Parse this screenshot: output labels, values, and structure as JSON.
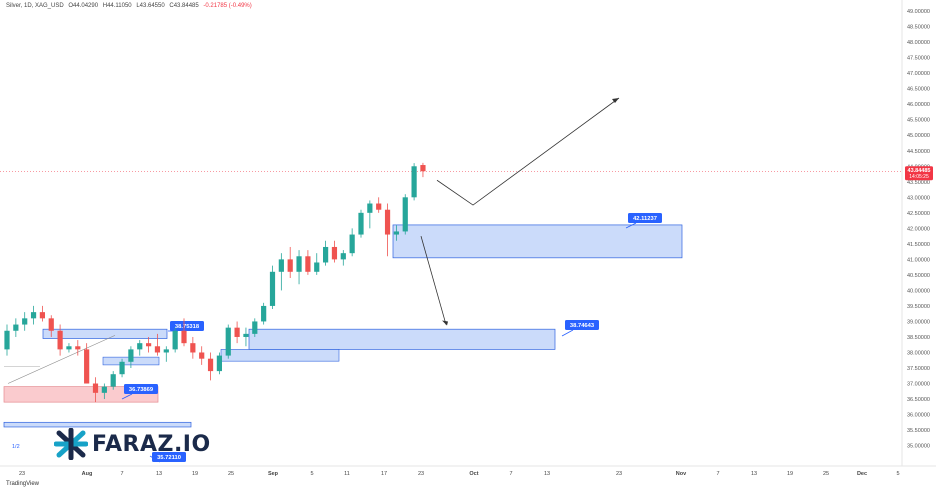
{
  "header": {
    "symbol": "Silver, 1D, XAG_USD",
    "open": "O44.04290",
    "high": "H44.11050",
    "low": "L43.64550",
    "close": "C43.84485",
    "change": "-0.21785 (-0.49%)"
  },
  "logo_text": "FARAZ.IO",
  "tv_brand": "TradingView",
  "left_marker": "1/2",
  "colors": {
    "up": "#26a69a",
    "down": "#ef5350",
    "zone_fill": "rgba(160,190,245,0.55)",
    "zone_stroke": "#2f63e0",
    "red_zone": "rgba(245,160,165,0.55)",
    "label_bg": "#2962ff",
    "price_label_bg": "#f23645"
  },
  "chart_data": {
    "type": "candlestick",
    "timeframe": "1D",
    "y_axis": {
      "ylim": [
        34.6,
        49.1
      ],
      "ticks": [
        "49.00000",
        "48.50000",
        "48.00000",
        "47.50000",
        "47.00000",
        "46.50000",
        "46.00000",
        "45.50000",
        "45.00000",
        "44.50000",
        "44.00000",
        "43.50000",
        "43.00000",
        "42.50000",
        "42.00000",
        "41.50000",
        "41.00000",
        "40.50000",
        "40.00000",
        "39.50000",
        "39.00000",
        "38.50000",
        "38.00000",
        "37.50000",
        "37.00000",
        "36.50000",
        "36.00000",
        "35.50000",
        "35.00000"
      ]
    },
    "x_axis": {
      "ticks": [
        "23",
        "Aug",
        "7",
        "13",
        "19",
        "25",
        "Sep",
        "5",
        "11",
        "17",
        "23",
        "Oct",
        "7",
        "13",
        "23",
        "Nov",
        "7",
        "13",
        "19",
        "25",
        "Dec",
        "5"
      ]
    },
    "candles": [
      {
        "o": 38.1,
        "h": 38.9,
        "l": 37.9,
        "c": 38.7
      },
      {
        "o": 38.7,
        "h": 39.1,
        "l": 38.5,
        "c": 38.9
      },
      {
        "o": 38.9,
        "h": 39.3,
        "l": 38.7,
        "c": 39.1
      },
      {
        "o": 39.1,
        "h": 39.5,
        "l": 38.9,
        "c": 39.3
      },
      {
        "o": 39.3,
        "h": 39.5,
        "l": 39.0,
        "c": 39.1
      },
      {
        "o": 39.1,
        "h": 39.2,
        "l": 38.5,
        "c": 38.7
      },
      {
        "o": 38.7,
        "h": 38.9,
        "l": 37.9,
        "c": 38.1
      },
      {
        "o": 38.1,
        "h": 38.3,
        "l": 38.0,
        "c": 38.2
      },
      {
        "o": 38.2,
        "h": 38.4,
        "l": 37.9,
        "c": 38.1
      },
      {
        "o": 38.1,
        "h": 38.3,
        "l": 37.0,
        "c": 37.0
      },
      {
        "o": 37.0,
        "h": 37.2,
        "l": 36.4,
        "c": 36.7
      },
      {
        "o": 36.7,
        "h": 37.0,
        "l": 36.5,
        "c": 36.9
      },
      {
        "o": 36.9,
        "h": 37.4,
        "l": 36.8,
        "c": 37.3
      },
      {
        "o": 37.3,
        "h": 37.8,
        "l": 37.2,
        "c": 37.7
      },
      {
        "o": 37.7,
        "h": 38.2,
        "l": 37.5,
        "c": 38.1
      },
      {
        "o": 38.1,
        "h": 38.4,
        "l": 37.9,
        "c": 38.3
      },
      {
        "o": 38.3,
        "h": 38.5,
        "l": 38.0,
        "c": 38.2
      },
      {
        "o": 38.2,
        "h": 38.6,
        "l": 37.9,
        "c": 38.0
      },
      {
        "o": 38.0,
        "h": 38.2,
        "l": 37.7,
        "c": 38.1
      },
      {
        "o": 38.1,
        "h": 38.8,
        "l": 38.0,
        "c": 38.7
      },
      {
        "o": 38.7,
        "h": 39.1,
        "l": 38.2,
        "c": 38.3
      },
      {
        "o": 38.3,
        "h": 38.5,
        "l": 37.8,
        "c": 38.0
      },
      {
        "o": 38.0,
        "h": 38.2,
        "l": 37.6,
        "c": 37.8
      },
      {
        "o": 37.8,
        "h": 38.0,
        "l": 37.1,
        "c": 37.4
      },
      {
        "o": 37.4,
        "h": 38.0,
        "l": 37.3,
        "c": 37.9
      },
      {
        "o": 37.9,
        "h": 38.9,
        "l": 37.8,
        "c": 38.8
      },
      {
        "o": 38.8,
        "h": 39.0,
        "l": 38.3,
        "c": 38.5
      },
      {
        "o": 38.5,
        "h": 38.8,
        "l": 38.2,
        "c": 38.6
      },
      {
        "o": 38.6,
        "h": 39.1,
        "l": 38.5,
        "c": 39.0
      },
      {
        "o": 39.0,
        "h": 39.6,
        "l": 38.9,
        "c": 39.5
      },
      {
        "o": 39.5,
        "h": 40.8,
        "l": 39.4,
        "c": 40.6
      },
      {
        "o": 40.6,
        "h": 41.2,
        "l": 40.0,
        "c": 41.0
      },
      {
        "o": 41.0,
        "h": 41.4,
        "l": 40.4,
        "c": 40.6
      },
      {
        "o": 40.6,
        "h": 41.3,
        "l": 40.2,
        "c": 41.1
      },
      {
        "o": 41.1,
        "h": 41.3,
        "l": 40.5,
        "c": 40.6
      },
      {
        "o": 40.6,
        "h": 41.2,
        "l": 40.5,
        "c": 40.9
      },
      {
        "o": 40.9,
        "h": 41.6,
        "l": 40.8,
        "c": 41.4
      },
      {
        "o": 41.4,
        "h": 41.6,
        "l": 40.9,
        "c": 41.0
      },
      {
        "o": 41.0,
        "h": 41.3,
        "l": 40.8,
        "c": 41.2
      },
      {
        "o": 41.2,
        "h": 42.0,
        "l": 41.1,
        "c": 41.8
      },
      {
        "o": 41.8,
        "h": 42.6,
        "l": 41.7,
        "c": 42.5
      },
      {
        "o": 42.5,
        "h": 42.9,
        "l": 42.0,
        "c": 42.8
      },
      {
        "o": 42.8,
        "h": 43.0,
        "l": 42.5,
        "c": 42.6
      },
      {
        "o": 42.6,
        "h": 42.8,
        "l": 41.1,
        "c": 41.8
      },
      {
        "o": 41.8,
        "h": 42.1,
        "l": 41.6,
        "c": 41.9
      },
      {
        "o": 41.9,
        "h": 43.1,
        "l": 41.8,
        "c": 43.0
      },
      {
        "o": 43.0,
        "h": 44.1,
        "l": 42.9,
        "c": 44.0
      },
      {
        "o": 44.04,
        "h": 44.11,
        "l": 43.65,
        "c": 43.84
      }
    ],
    "zones": [
      {
        "label": "42.11237",
        "top": 42.11,
        "bottom": 41.05
      },
      {
        "label": "38.74643",
        "top": 38.75,
        "bottom": 38.1
      },
      {
        "label": "38.75318",
        "top": 38.75,
        "bottom": 38.45
      },
      {
        "label": "36.73869",
        "top": 36.9,
        "bottom": 36.4
      },
      {
        "label": "35.72110",
        "top": 35.75,
        "bottom": 35.6
      }
    ],
    "last_price_label": "43.84485",
    "countdown_label": "14:05:25",
    "projection": [
      43.55,
      42.75,
      46.2
    ],
    "projection_down": [
      41.75,
      38.9
    ]
  }
}
